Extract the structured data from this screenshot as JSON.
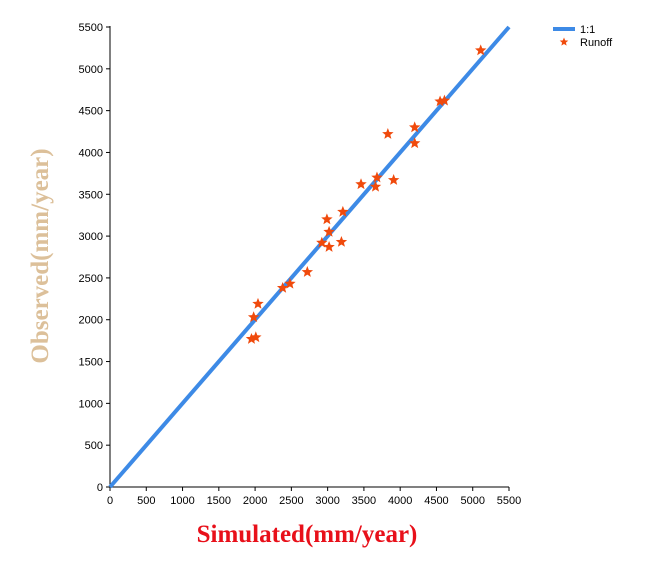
{
  "chart_data": {
    "type": "scatter",
    "xlabel": "Simulated(mm/year)",
    "ylabel": "Observed(mm/year)",
    "xlim": [
      0,
      5500
    ],
    "ylim": [
      0,
      5500
    ],
    "x_ticks": [
      0,
      500,
      1000,
      1500,
      2000,
      2500,
      3000,
      3500,
      4000,
      4500,
      5000,
      5500
    ],
    "y_ticks": [
      0,
      500,
      1000,
      1500,
      2000,
      2500,
      3000,
      3500,
      4000,
      4500,
      5000,
      5500
    ],
    "x_tick_labels": [
      "0",
      "500",
      "1000",
      "1500",
      "2000",
      "2500",
      "3000",
      "3500",
      "4000",
      "4500",
      "5000",
      "5500"
    ],
    "y_tick_labels": [
      "0",
      "500",
      "1000",
      "1500",
      "2000",
      "2500",
      "3000",
      "3500",
      "4000",
      "4500",
      "5000",
      "5500"
    ],
    "grid": false,
    "legend_position": "top-right",
    "xlabel_color": "#e8101a",
    "ylabel_color": "#dcc09a",
    "series": [
      {
        "name": "1:1",
        "kind": "line",
        "color": "#3d8ae6",
        "x": [
          0,
          5500
        ],
        "y": [
          0,
          5500
        ]
      },
      {
        "name": "Runoff",
        "kind": "scatter",
        "marker": "star",
        "color": "#f04a0c",
        "points": [
          [
            1950,
            1770
          ],
          [
            2010,
            1790
          ],
          [
            1980,
            2030
          ],
          [
            2040,
            2190
          ],
          [
            2380,
            2380
          ],
          [
            2480,
            2430
          ],
          [
            2720,
            2570
          ],
          [
            2920,
            2920
          ],
          [
            3020,
            2870
          ],
          [
            3020,
            3050
          ],
          [
            2990,
            3200
          ],
          [
            3190,
            2930
          ],
          [
            3210,
            3290
          ],
          [
            3460,
            3620
          ],
          [
            3660,
            3590
          ],
          [
            3680,
            3700
          ],
          [
            3830,
            4220
          ],
          [
            3910,
            3670
          ],
          [
            4200,
            4300
          ],
          [
            4200,
            4110
          ],
          [
            4550,
            4610
          ],
          [
            4610,
            4620
          ],
          [
            5110,
            5220
          ]
        ]
      }
    ]
  }
}
